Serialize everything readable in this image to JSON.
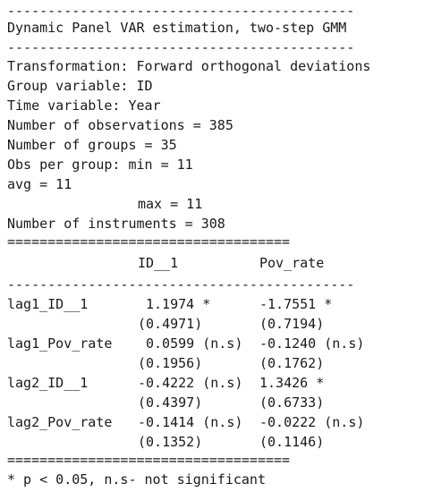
{
  "output": {
    "rule_dash_top": "-------------------------------------------",
    "title": "Dynamic Panel VAR estimation, two-step GMM",
    "rule_dash_2": "-------------------------------------------",
    "info": [
      "Transformation: Forward orthogonal deviations",
      "Group variable: ID",
      "Time variable: Year",
      "Number of observations = 385",
      "Number of groups = 35",
      "Obs per group: min = 11",
      "avg = 11",
      "max = 11",
      "Number of instruments = 308"
    ],
    "rule_eq_1": "===================================",
    "col_headers": [
      "ID__1",
      "Pov_rate"
    ],
    "rule_dash_3": "-------------------------------------------",
    "rows": [
      {
        "label": "lag1_ID__1",
        "c1": "1.1974 *",
        "c1_se": "(0.4971)",
        "c2": "-1.7551 *",
        "c2_se": "(0.7194)"
      },
      {
        "label": "lag1_Pov_rate",
        "c1": "0.0599 (n.s)",
        "c1_se": "(0.1956)",
        "c2": "-0.1240 (n.s)",
        "c2_se": "(0.1762)"
      },
      {
        "label": "lag2_ID__1",
        "c1": "-0.4222 (n.s)",
        "c1_se": "(0.4397)",
        "c2": "1.3426 *",
        "c2_se": "(0.6733)"
      },
      {
        "label": "lag2_Pov_rate",
        "c1": "-0.1414 (n.s)",
        "c1_se": "(0.1352)",
        "c2": "-0.0222 (n.s)",
        "c2_se": "(0.1146)"
      }
    ],
    "rule_eq_2": "===================================",
    "footnote": "* p < 0.05, n.s- not significant"
  }
}
